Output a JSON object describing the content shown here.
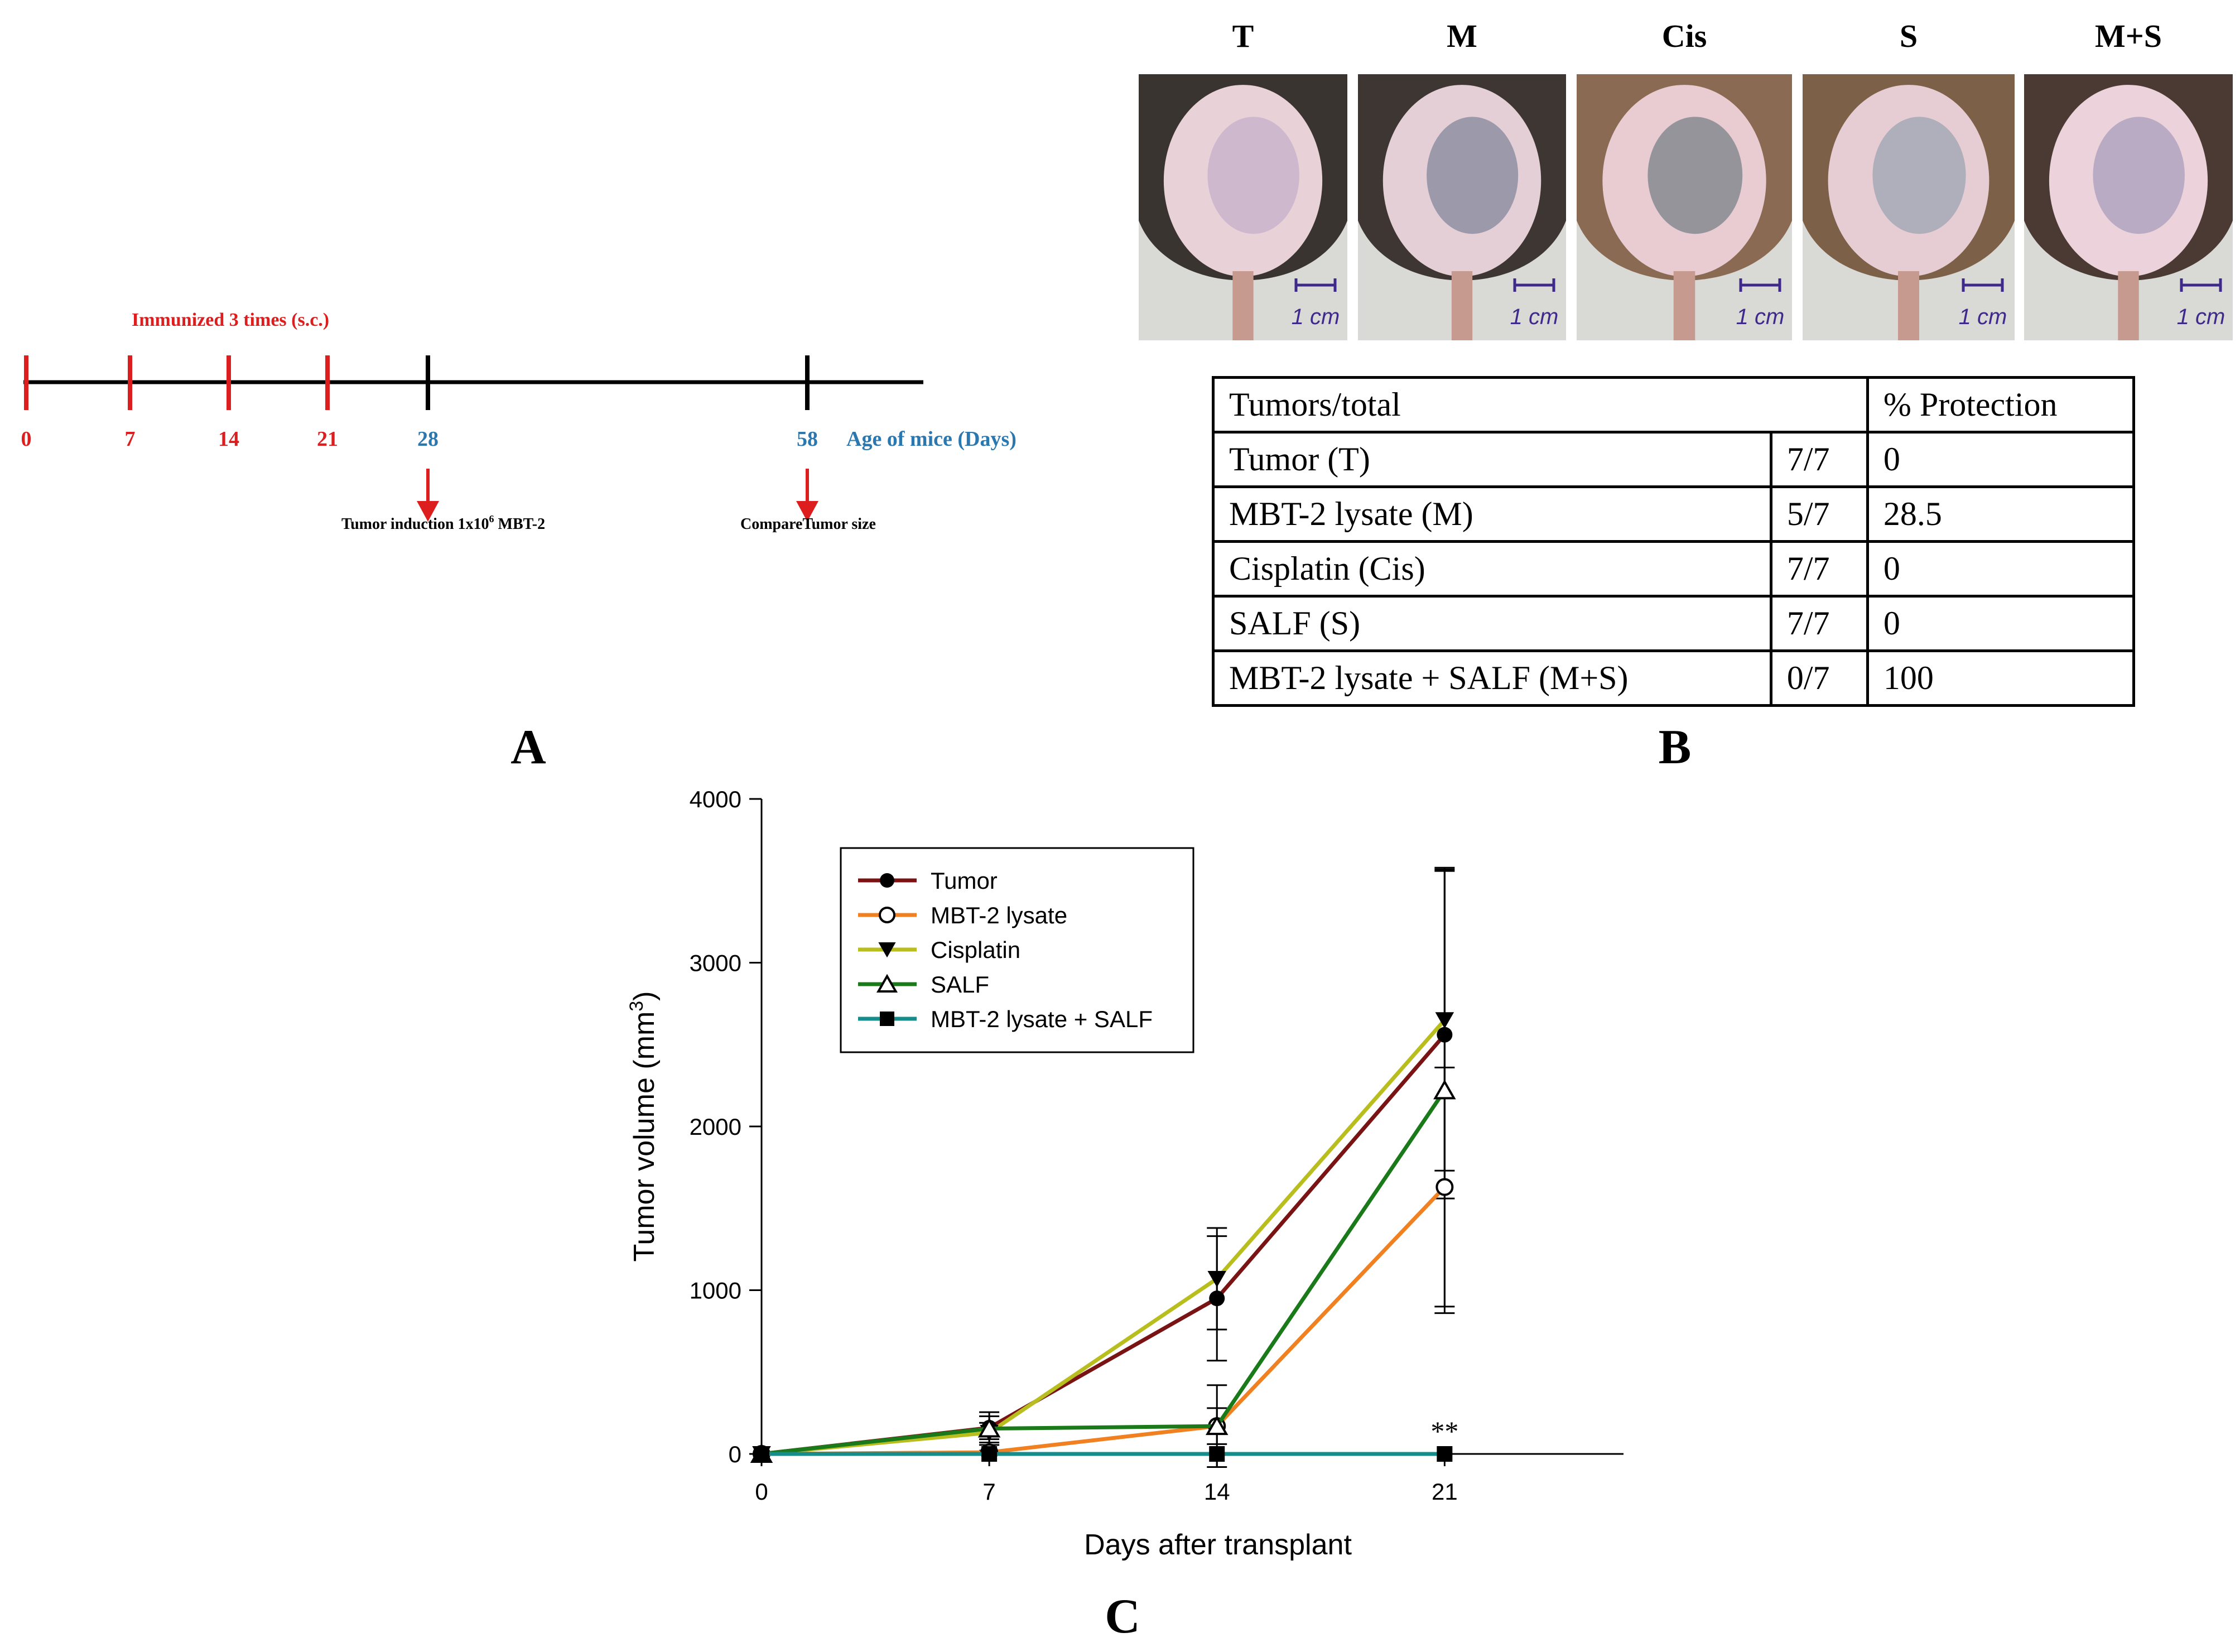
{
  "panelA": {
    "label": "A",
    "immunized_label": "Immunized 3 times  (s.c.)",
    "ticks": [
      {
        "day": "0",
        "color": "#dc1e1e"
      },
      {
        "day": "7",
        "color": "#dc1e1e"
      },
      {
        "day": "14",
        "color": "#dc1e1e"
      },
      {
        "day": "21",
        "color": "#dc1e1e"
      },
      {
        "day": "28",
        "color": "#2b78b0"
      },
      {
        "day": "58",
        "color": "#2b78b0"
      }
    ],
    "axis_label": "Age of mice (Days)",
    "tumor_induction": "Tumor induction  1x10",
    "tumor_induction_sup": "6",
    "tumor_induction_tail": " MBT-2",
    "compare_label": "CompareTumor size",
    "arrow_color": "#dc1e1e"
  },
  "panelB": {
    "label": "B",
    "photos": [
      {
        "label": "T",
        "scale": "1 cm",
        "fur": "#3a3431",
        "skin": "#e8d2d8",
        "tumor": "#c8b4cc"
      },
      {
        "label": "M",
        "scale": "1 cm",
        "fur": "#3d3633",
        "skin": "#e5cfd6",
        "tumor": "#8f8fa2"
      },
      {
        "label": "Cis",
        "scale": "1 cm",
        "fur": "#8a6a52",
        "skin": "#e8ccd2",
        "tumor": "#868a92"
      },
      {
        "label": "S",
        "scale": "1 cm",
        "fur": "#7d6048",
        "skin": "#e6cdd4",
        "tumor": "#a4a8b6"
      },
      {
        "label": "M+S",
        "scale": "1 cm",
        "fur": "#4a3a33",
        "skin": "#ecd2da",
        "tumor": "#b2a4c0"
      }
    ],
    "table": {
      "header_left": "Tumors/total",
      "header_right": "% Protection",
      "rows": [
        {
          "group": "Tumor (T)",
          "ratio": "7/7",
          "protection": "0"
        },
        {
          "group": "MBT-2 lysate (M)",
          "ratio": "5/7",
          "protection": "28.5"
        },
        {
          "group": "Cisplatin (Cis)",
          "ratio": "7/7",
          "protection": "0"
        },
        {
          "group": "SALF (S)",
          "ratio": "7/7",
          "protection": "0"
        },
        {
          "group": "MBT-2 lysate + SALF (M+S)",
          "ratio": "0/7",
          "protection": "100"
        }
      ]
    }
  },
  "panelC": {
    "label": "C",
    "significance": "**",
    "chart_data": {
      "type": "line",
      "title": "",
      "xlabel": "Days after transplant",
      "ylabel": "Tumor volume (mm",
      "ylabel_sup": "3",
      "ylabel_tail": ")",
      "x": [
        0,
        7,
        14,
        21
      ],
      "xticks": [
        "0",
        "7",
        "14",
        "21"
      ],
      "yticks": [
        "0",
        "1000",
        "2000",
        "3000",
        "4000"
      ],
      "xlim": [
        0,
        26.5
      ],
      "ylim": [
        0,
        4000
      ],
      "grid": false,
      "legend_position": "top-left",
      "series": [
        {
          "name": "Tumor",
          "color": "#7a1414",
          "marker": "circle-filled",
          "values": [
            0,
            160,
            950,
            2560
          ],
          "errors": [
            0,
            70,
            380,
            1000
          ]
        },
        {
          "name": "MBT-2 lysate",
          "color": "#f08020",
          "marker": "circle-open",
          "values": [
            0,
            10,
            170,
            1630
          ],
          "errors": [
            0,
            10,
            110,
            730
          ]
        },
        {
          "name": "Cisplatin",
          "color": "#b8be1e",
          "marker": "triangle-down-filled",
          "values": [
            0,
            130,
            1070,
            2650
          ],
          "errors": [
            0,
            60,
            310,
            920
          ]
        },
        {
          "name": "SALF",
          "color": "#1a7a1a",
          "marker": "triangle-up-open",
          "values": [
            0,
            155,
            170,
            2220
          ],
          "errors": [
            0,
            100,
            250,
            1360
          ]
        },
        {
          "name": "MBT-2 lysate + SALF",
          "color": "#178c8c",
          "marker": "square-filled",
          "values": [
            0,
            0,
            0,
            0
          ],
          "errors": [
            0,
            0,
            0,
            0
          ]
        }
      ]
    }
  }
}
